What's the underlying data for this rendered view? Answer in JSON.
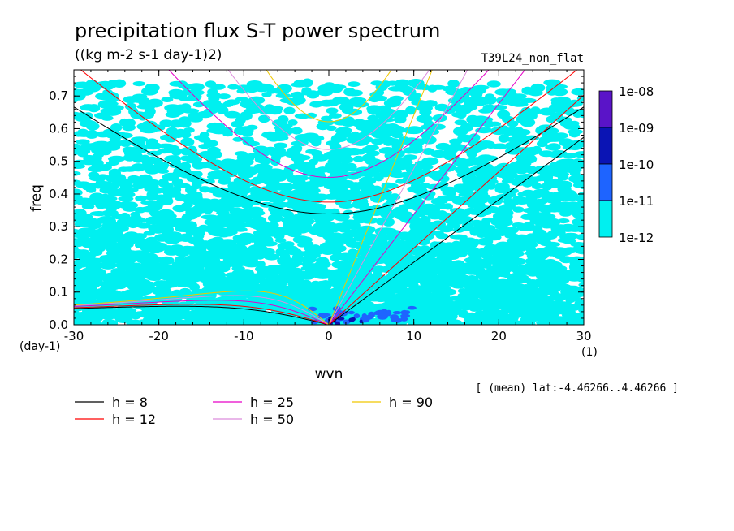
{
  "chart_data": {
    "type": "heatmap",
    "title": "precipitation flux S-T power spectrum",
    "subtitle": "((kg m-2 s-1 day-1)2)",
    "run_label": "T39L24_non_flat",
    "xlabel": "wvn",
    "ylabel": "freq",
    "x_unit": "(1)",
    "y_unit": "(day-1)",
    "xlim": [
      -30,
      30
    ],
    "ylim": [
      0,
      0.78
    ],
    "x_ticks": [
      "-30",
      "-20",
      "-10",
      "0",
      "10",
      "20",
      "30"
    ],
    "y_ticks": [
      "0.0",
      "0.1",
      "0.2",
      "0.3",
      "0.4",
      "0.5",
      "0.6",
      "0.7"
    ],
    "note": "[ (mean) lat:-4.46266..4.46266 ]",
    "colorbar": {
      "levels": [
        "1e-08",
        "1e-09",
        "1e-10",
        "1e-11",
        "1e-12"
      ],
      "colors": [
        "#5a14c8",
        "#0a14b4",
        "#1e64ff",
        "#00f0f0"
      ]
    },
    "dispersion_curves": [
      {
        "name": "h = 8",
        "h": 8,
        "color": "#000000"
      },
      {
        "name": "h = 12",
        "h": 12,
        "color": "#ff0000"
      },
      {
        "name": "h = 25",
        "h": 25,
        "color": "#e600c8"
      },
      {
        "name": "h = 50",
        "h": 50,
        "color": "#dc8cdc"
      },
      {
        "name": "h = 90",
        "h": 90,
        "color": "#f0c800"
      }
    ],
    "grid": false
  }
}
